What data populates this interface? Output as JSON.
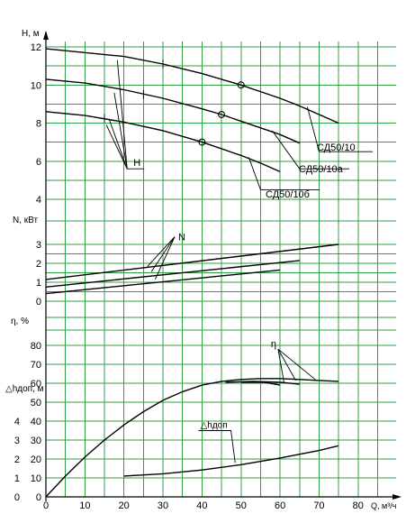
{
  "chart_data": {
    "type": "line",
    "x_axis": {
      "label": "Q, м³/ч",
      "ticks": [
        0,
        10,
        20,
        30,
        40,
        50,
        60,
        70,
        80
      ],
      "range": [
        0,
        87
      ]
    },
    "panels": [
      {
        "id": "head",
        "ylabel": "H, м",
        "ylim": [
          4,
          12.4
        ],
        "yticks": [
          4,
          6,
          8,
          10,
          12
        ],
        "gridlines": [
          4,
          5,
          6,
          7,
          8,
          9,
          10,
          11,
          12
        ],
        "series": [
          {
            "name": "СД50/10",
            "x": [
              0,
              20,
              30,
              40,
              50,
              60,
              65,
              75
            ],
            "y": [
              11.9,
              11.5,
              11.1,
              10.6,
              10.0,
              9.3,
              8.9,
              8.0
            ],
            "marker_x": 50,
            "marker_y": 10.0
          },
          {
            "name": "СД50/10а",
            "x": [
              0,
              10,
              20,
              30,
              40,
              45,
              50,
              60,
              65
            ],
            "y": [
              10.3,
              10.1,
              9.75,
              9.3,
              8.75,
              8.45,
              8.1,
              7.4,
              6.95
            ],
            "marker_x": 45,
            "marker_y": 8.45
          },
          {
            "name": "СД50/10б",
            "x": [
              0,
              10,
              20,
              30,
              40,
              50,
              55,
              60
            ],
            "y": [
              8.6,
              8.4,
              8.05,
              7.6,
              7.0,
              6.3,
              5.9,
              5.45
            ],
            "marker_x": 40,
            "marker_y": 7.0
          }
        ],
        "callout": "H"
      },
      {
        "id": "power",
        "ylabel": "N, кВт",
        "ylim": [
          0,
          3.3
        ],
        "yticks": [
          0,
          1,
          2,
          3
        ],
        "gridlines": [
          0,
          0.5,
          1,
          1.5,
          2,
          2.5,
          3
        ],
        "series": [
          {
            "x": [
              0,
              75
            ],
            "y": [
              1.15,
              3.0
            ]
          },
          {
            "x": [
              0,
              65
            ],
            "y": [
              0.75,
              2.15
            ]
          },
          {
            "x": [
              0,
              60
            ],
            "y": [
              0.4,
              1.65
            ]
          }
        ],
        "callout": "N"
      },
      {
        "id": "efficiency",
        "ylabel": "η, %",
        "ylim": [
          0,
          82
        ],
        "yticks": [
          0,
          10,
          20,
          30,
          40,
          50,
          60,
          70,
          80
        ],
        "gridlines": [
          0,
          10,
          20,
          30,
          40,
          50,
          60,
          70,
          80
        ],
        "series": [
          {
            "x": [
              0,
              5,
              10,
              15,
              20,
              25,
              30,
              35,
              40,
              45,
              50,
              55,
              60,
              65,
              70,
              75
            ],
            "y": [
              0,
              11,
              21,
              30,
              38,
              45,
              51,
              55.5,
              59,
              61,
              62,
              62.5,
              62.5,
              62,
              61.5,
              61
            ]
          },
          {
            "x": [
              46,
              53,
              60,
              65
            ],
            "y": [
              60.5,
              61,
              60.5,
              59.5
            ]
          },
          {
            "x": [
              50,
              56,
              60
            ],
            "y": [
              60.5,
              60.5,
              59
            ]
          }
        ],
        "callout": "η"
      },
      {
        "id": "npsh",
        "ylabel": "△hдоп, м",
        "yticks": [
          0,
          1,
          2,
          3,
          4
        ],
        "series": [
          {
            "name": "△hдоп",
            "x": [
              20,
              30,
              40,
              50,
              60,
              70,
              75
            ],
            "y": [
              1.1,
              1.22,
              1.42,
              1.7,
              2.05,
              2.45,
              2.7
            ]
          }
        ],
        "callout": "△hдоп"
      }
    ]
  }
}
